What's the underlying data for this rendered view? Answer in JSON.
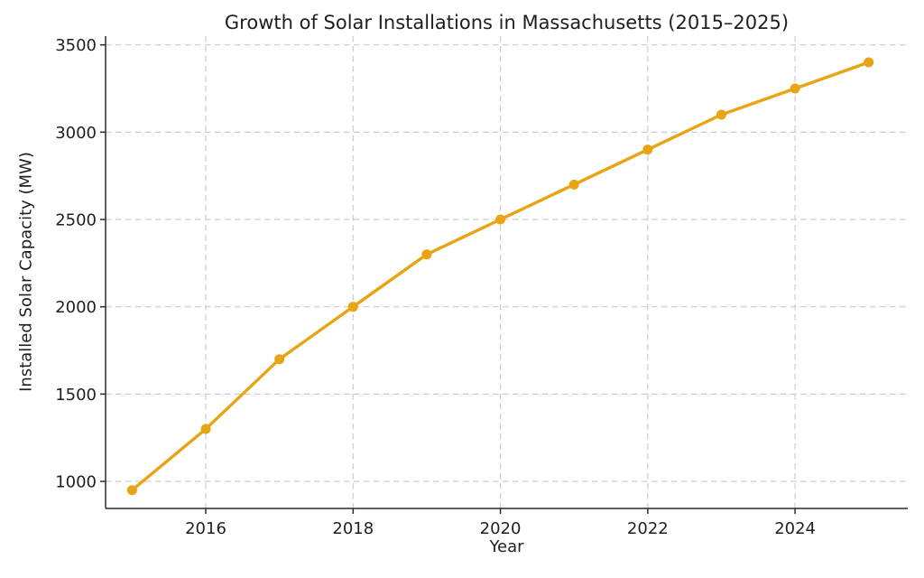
{
  "chart_data": {
    "type": "line",
    "title": "Growth of Solar Installations in Massachusetts (2015–2025)",
    "xlabel": "Year",
    "ylabel": "Installed Solar Capacity (MW)",
    "x": [
      2015,
      2016,
      2017,
      2018,
      2019,
      2020,
      2021,
      2022,
      2023,
      2024,
      2025
    ],
    "values": [
      950,
      1300,
      1700,
      2000,
      2300,
      2500,
      2700,
      2900,
      3100,
      3250,
      3400
    ],
    "xticks": [
      2016,
      2018,
      2020,
      2022,
      2024
    ],
    "yticks": [
      1000,
      1500,
      2000,
      2500,
      3000,
      3500
    ],
    "xlim": [
      2014.64,
      2025.53
    ],
    "ylim": [
      845,
      3550
    ],
    "grid": true,
    "grid_style": "dashed",
    "legend": "none",
    "marker": "circle",
    "colors": {
      "line": "#E8A412",
      "grid": "#cccccc",
      "axis": "#2b2b2b",
      "text": "#1f1f1f",
      "background": "#ffffff"
    }
  }
}
